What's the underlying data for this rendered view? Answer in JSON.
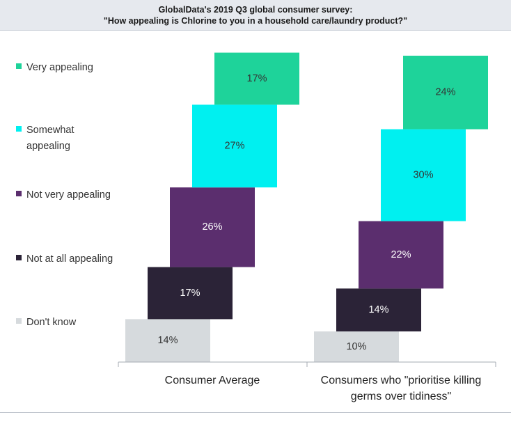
{
  "header": {
    "line1": "GlobalData's 2019 Q3 global consumer survey:",
    "line2": "\"How appealing is Chlorine to you in a household care/laundry product?\""
  },
  "chart_data": {
    "type": "bar",
    "subtype": "stacked-waterfall",
    "categories": [
      [
        "Consumer Average"
      ],
      [
        "Consumers who \"prioritise killing",
        "germs over tidiness\""
      ]
    ],
    "series": [
      {
        "name": "Very appealing",
        "legend_lines": [
          "Very appealing"
        ],
        "color": "#1ed39a",
        "text_color": "#333333",
        "values": [
          17,
          24
        ]
      },
      {
        "name": "Somewhat appealing",
        "legend_lines": [
          "Somewhat",
          "appealing"
        ],
        "color": "#00f0f0",
        "text_color": "#333333",
        "values": [
          27,
          30
        ]
      },
      {
        "name": "Not very appealing",
        "legend_lines": [
          "Not very appealing"
        ],
        "color": "#5b2e6e",
        "text_color": "#ffffff",
        "values": [
          26,
          22
        ]
      },
      {
        "name": "Not at all appealing",
        "legend_lines": [
          "Not at all appealing"
        ],
        "color": "#2b2337",
        "text_color": "#ffffff",
        "values": [
          17,
          14
        ]
      },
      {
        "name": "Don't know",
        "legend_lines": [
          "Don't know"
        ],
        "color": "#d6dadd",
        "text_color": "#333333",
        "values": [
          14,
          10
        ]
      }
    ],
    "unit": "%",
    "legend_position": "left",
    "ylim": [
      0,
      101
    ]
  }
}
